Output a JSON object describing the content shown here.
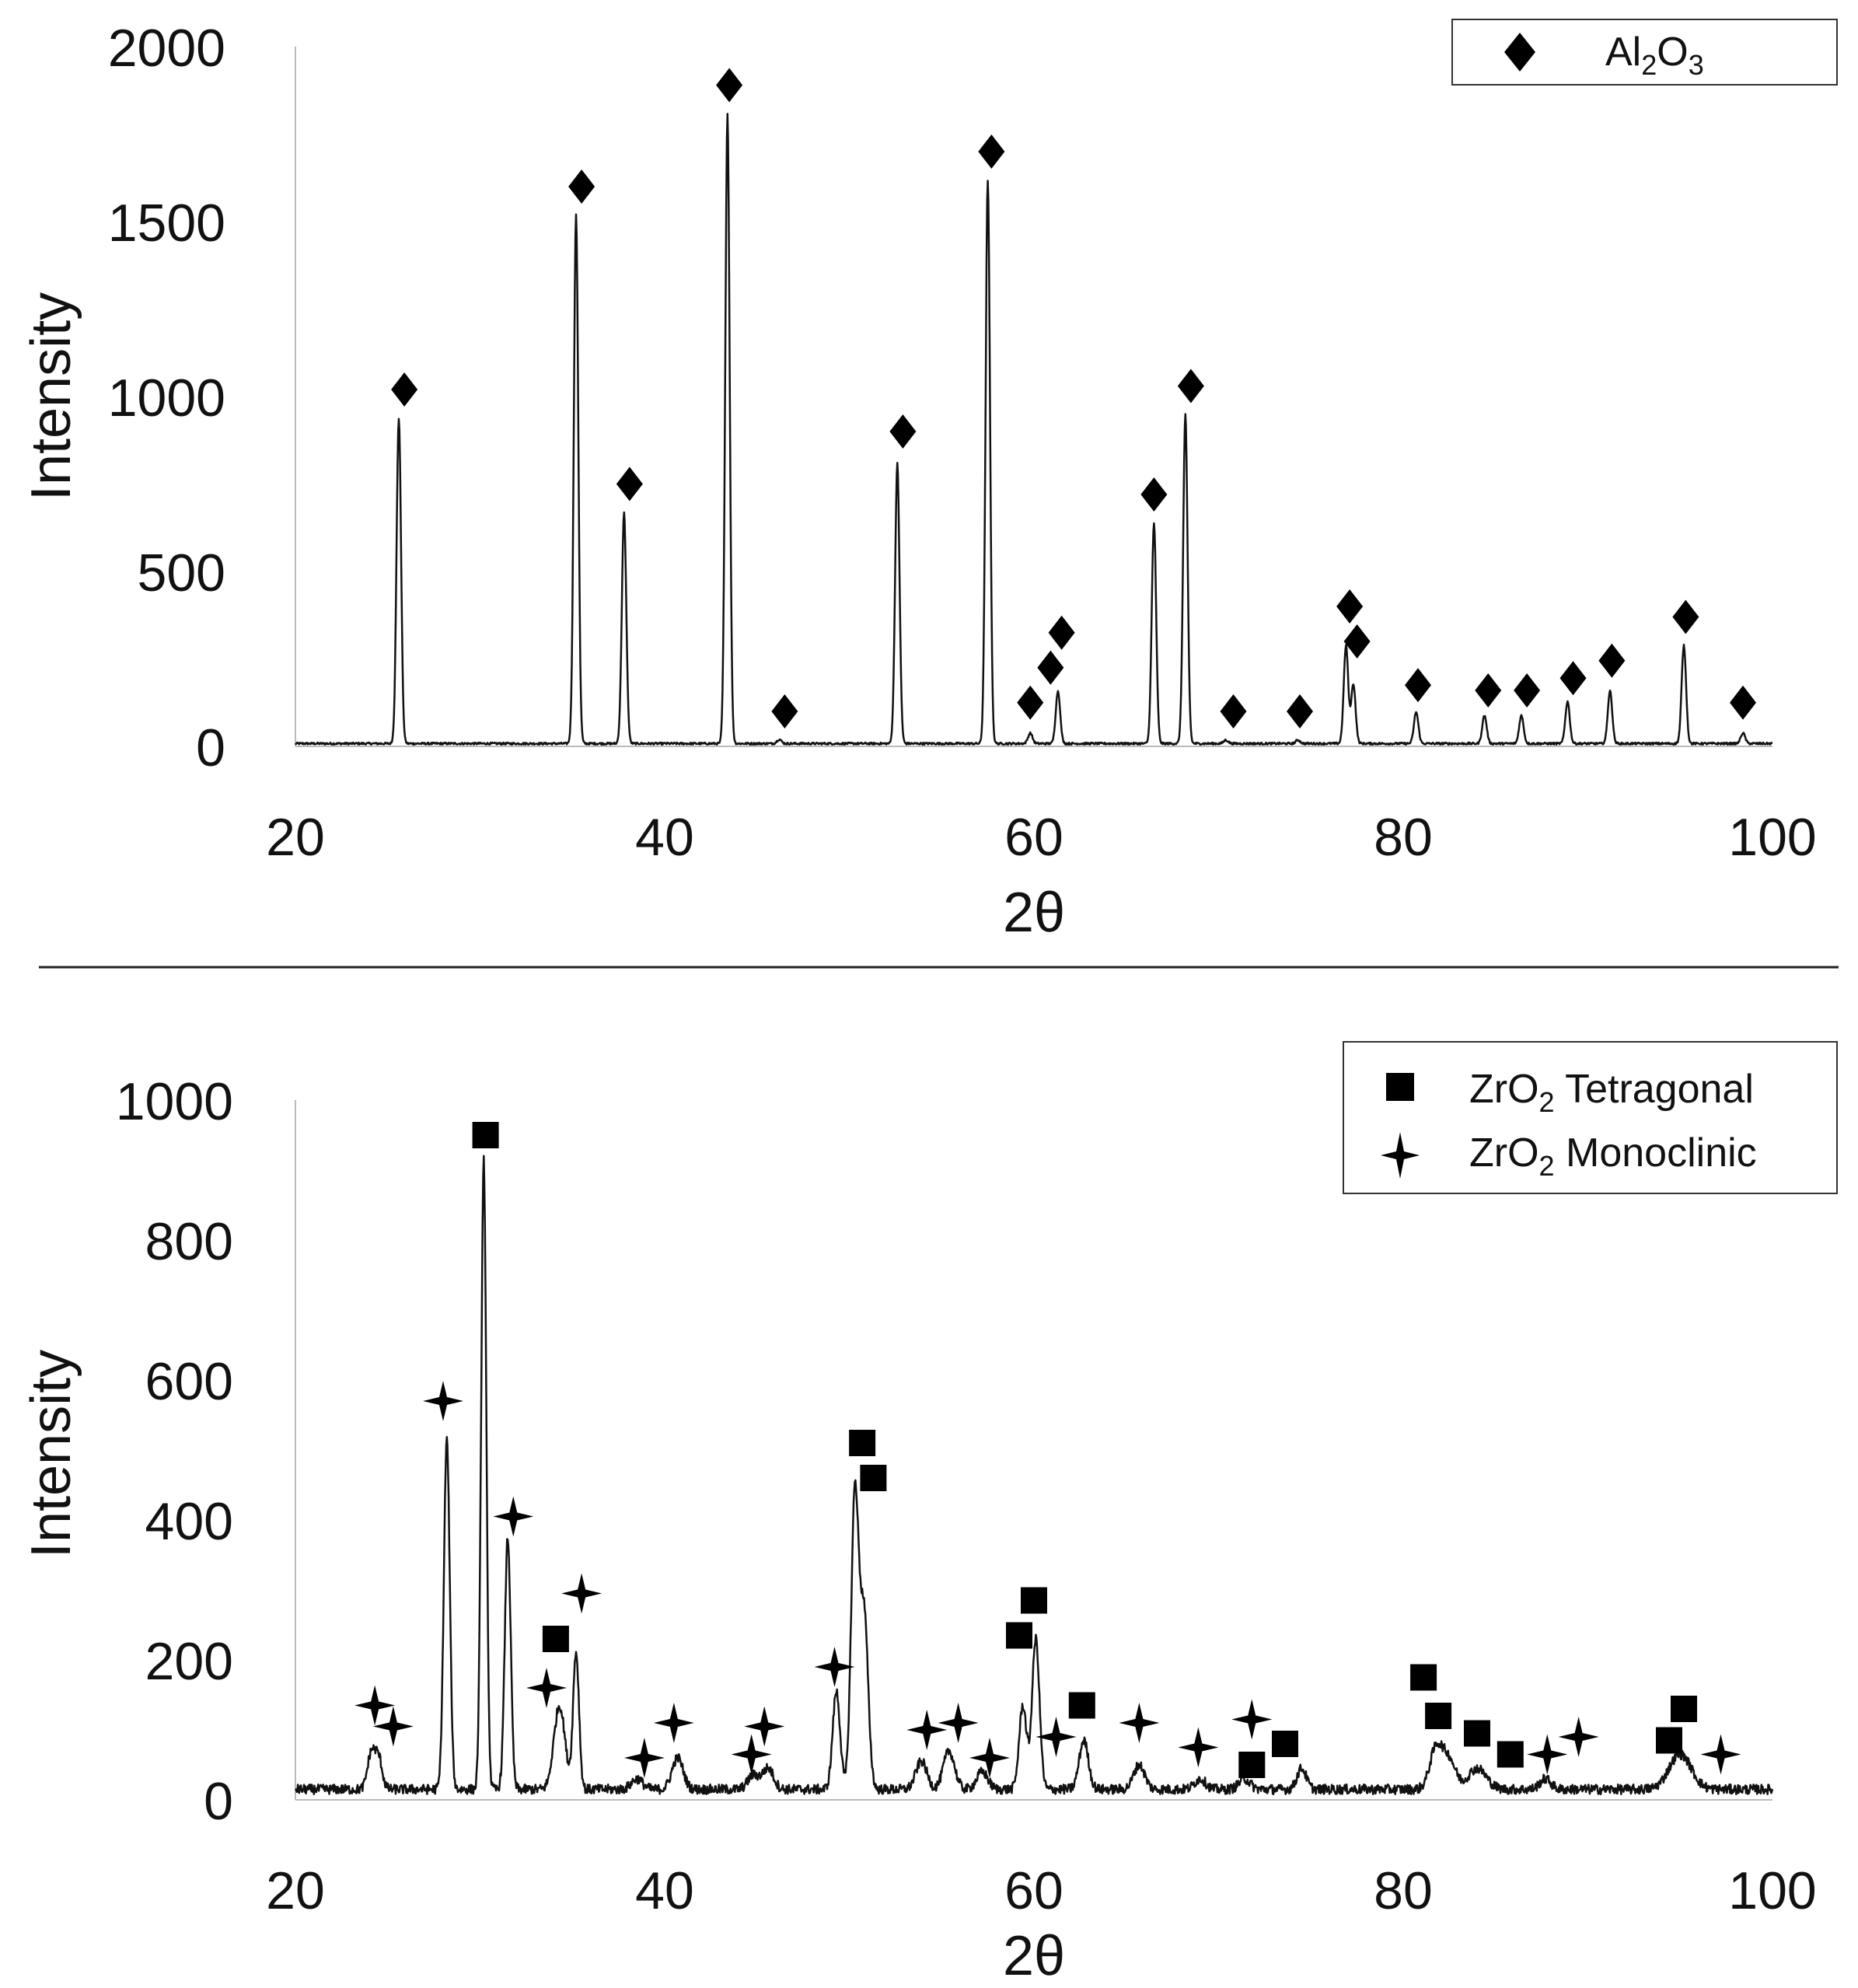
{
  "chart_data": [
    {
      "type": "line",
      "panel": "top",
      "title": "",
      "xlabel": "2θ",
      "ylabel": "Intensity",
      "xlim": [
        20,
        100
      ],
      "ylim": [
        0,
        2000
      ],
      "xticks": [
        "20",
        "40",
        "60",
        "80",
        "100"
      ],
      "yticks": [
        "0",
        "500",
        "1000",
        "1500",
        "2000"
      ],
      "grid": false,
      "legend_position": "top-right",
      "legend": [
        {
          "marker": "diamond",
          "label": "Al",
          "sub1": "2",
          "mid": "O",
          "sub2": "3"
        }
      ],
      "baseline": 5,
      "peaks": [
        {
          "x": 25.6,
          "y": 930,
          "w": 0.12
        },
        {
          "x": 35.2,
          "y": 1510,
          "w": 0.12
        },
        {
          "x": 37.8,
          "y": 660,
          "w": 0.12
        },
        {
          "x": 43.4,
          "y": 1800,
          "w": 0.12
        },
        {
          "x": 46.2,
          "y": 12,
          "w": 0.12
        },
        {
          "x": 52.6,
          "y": 800,
          "w": 0.12
        },
        {
          "x": 57.5,
          "y": 1610,
          "w": 0.12
        },
        {
          "x": 59.8,
          "y": 30,
          "w": 0.12
        },
        {
          "x": 61.3,
          "y": 150,
          "w": 0.12
        },
        {
          "x": 66.5,
          "y": 630,
          "w": 0.12
        },
        {
          "x": 68.2,
          "y": 940,
          "w": 0.12
        },
        {
          "x": 70.4,
          "y": 10,
          "w": 0.12
        },
        {
          "x": 74.3,
          "y": 10,
          "w": 0.12
        },
        {
          "x": 76.9,
          "y": 280,
          "w": 0.12
        },
        {
          "x": 77.3,
          "y": 170,
          "w": 0.12
        },
        {
          "x": 80.7,
          "y": 90,
          "w": 0.12
        },
        {
          "x": 84.4,
          "y": 80,
          "w": 0.12
        },
        {
          "x": 86.4,
          "y": 80,
          "w": 0.12
        },
        {
          "x": 88.9,
          "y": 120,
          "w": 0.12
        },
        {
          "x": 91.2,
          "y": 150,
          "w": 0.12
        },
        {
          "x": 95.2,
          "y": 280,
          "w": 0.12
        },
        {
          "x": 98.4,
          "y": 30,
          "w": 0.12
        }
      ],
      "markers": [
        {
          "shape": "diamond",
          "x": 25.9,
          "y": 1020
        },
        {
          "shape": "diamond",
          "x": 35.5,
          "y": 1600
        },
        {
          "shape": "diamond",
          "x": 38.1,
          "y": 750
        },
        {
          "shape": "diamond",
          "x": 43.5,
          "y": 1890
        },
        {
          "shape": "diamond",
          "x": 46.5,
          "y": 100
        },
        {
          "shape": "diamond",
          "x": 52.9,
          "y": 900
        },
        {
          "shape": "diamond",
          "x": 57.7,
          "y": 1700
        },
        {
          "shape": "diamond",
          "x": 59.8,
          "y": 125
        },
        {
          "shape": "diamond",
          "x": 60.9,
          "y": 225
        },
        {
          "shape": "diamond",
          "x": 61.5,
          "y": 325
        },
        {
          "shape": "diamond",
          "x": 66.5,
          "y": 720
        },
        {
          "shape": "diamond",
          "x": 68.5,
          "y": 1030
        },
        {
          "shape": "diamond",
          "x": 70.8,
          "y": 100
        },
        {
          "shape": "diamond",
          "x": 74.4,
          "y": 100
        },
        {
          "shape": "diamond",
          "x": 77.1,
          "y": 400
        },
        {
          "shape": "diamond",
          "x": 77.5,
          "y": 300
        },
        {
          "shape": "diamond",
          "x": 80.8,
          "y": 175
        },
        {
          "shape": "diamond",
          "x": 84.6,
          "y": 160
        },
        {
          "shape": "diamond",
          "x": 86.7,
          "y": 160
        },
        {
          "shape": "diamond",
          "x": 89.2,
          "y": 195
        },
        {
          "shape": "diamond",
          "x": 91.3,
          "y": 245
        },
        {
          "shape": "diamond",
          "x": 95.3,
          "y": 370
        },
        {
          "shape": "diamond",
          "x": 98.4,
          "y": 125
        }
      ]
    },
    {
      "type": "line",
      "panel": "bottom",
      "title": "",
      "xlabel": "2θ",
      "ylabel": "Intensity",
      "xlim": [
        20,
        100
      ],
      "ylim": [
        0,
        1000
      ],
      "xticks": [
        "20",
        "40",
        "60",
        "80",
        "100"
      ],
      "yticks": [
        "0",
        "200",
        "400",
        "600",
        "800",
        "1000"
      ],
      "grid": false,
      "legend_position": "top-right",
      "legend": [
        {
          "marker": "square",
          "label": "ZrO",
          "sub1": "2",
          "mid": " Tetragonal",
          "sub2": ""
        },
        {
          "marker": "star",
          "label": "ZrO",
          "sub1": "2",
          "mid": " Monoclinic",
          "sub2": ""
        }
      ],
      "baseline": 8,
      "peaks": [
        {
          "x": 24.1,
          "y": 50,
          "w": 0.2
        },
        {
          "x": 24.5,
          "y": 45,
          "w": 0.2
        },
        {
          "x": 28.2,
          "y": 500,
          "w": 0.16
        },
        {
          "x": 30.2,
          "y": 900,
          "w": 0.14
        },
        {
          "x": 31.5,
          "y": 360,
          "w": 0.16
        },
        {
          "x": 34.3,
          "y": 120,
          "w": 0.3
        },
        {
          "x": 35.2,
          "y": 195,
          "w": 0.16
        },
        {
          "x": 38.5,
          "y": 15,
          "w": 0.3
        },
        {
          "x": 40.7,
          "y": 45,
          "w": 0.3
        },
        {
          "x": 44.8,
          "y": 20,
          "w": 0.3
        },
        {
          "x": 45.6,
          "y": 30,
          "w": 0.3
        },
        {
          "x": 49.3,
          "y": 140,
          "w": 0.2
        },
        {
          "x": 50.3,
          "y": 420,
          "w": 0.2
        },
        {
          "x": 50.8,
          "y": 250,
          "w": 0.22
        },
        {
          "x": 53.9,
          "y": 40,
          "w": 0.3
        },
        {
          "x": 55.4,
          "y": 55,
          "w": 0.3
        },
        {
          "x": 57.2,
          "y": 25,
          "w": 0.3
        },
        {
          "x": 59.4,
          "y": 120,
          "w": 0.2
        },
        {
          "x": 60.1,
          "y": 215,
          "w": 0.2
        },
        {
          "x": 62.7,
          "y": 70,
          "w": 0.25
        },
        {
          "x": 65.7,
          "y": 35,
          "w": 0.3
        },
        {
          "x": 69.0,
          "y": 15,
          "w": 0.3
        },
        {
          "x": 71.4,
          "y": 15,
          "w": 0.3
        },
        {
          "x": 74.5,
          "y": 30,
          "w": 0.25
        },
        {
          "x": 81.8,
          "y": 60,
          "w": 0.35
        },
        {
          "x": 82.5,
          "y": 40,
          "w": 0.35
        },
        {
          "x": 84.0,
          "y": 30,
          "w": 0.5
        },
        {
          "x": 87.7,
          "y": 15,
          "w": 0.3
        },
        {
          "x": 95.0,
          "y": 50,
          "w": 0.6
        }
      ],
      "markers": [
        {
          "shape": "star",
          "x": 24.3,
          "y": 135
        },
        {
          "shape": "star",
          "x": 25.3,
          "y": 105
        },
        {
          "shape": "star",
          "x": 28.0,
          "y": 570
        },
        {
          "shape": "square",
          "x": 30.3,
          "y": 950
        },
        {
          "shape": "star",
          "x": 31.8,
          "y": 405
        },
        {
          "shape": "star",
          "x": 33.6,
          "y": 160
        },
        {
          "shape": "square",
          "x": 34.1,
          "y": 230
        },
        {
          "shape": "star",
          "x": 35.5,
          "y": 295
        },
        {
          "shape": "star",
          "x": 38.9,
          "y": 60
        },
        {
          "shape": "star",
          "x": 40.5,
          "y": 110
        },
        {
          "shape": "star",
          "x": 44.7,
          "y": 65
        },
        {
          "shape": "star",
          "x": 45.4,
          "y": 105
        },
        {
          "shape": "star",
          "x": 49.2,
          "y": 190
        },
        {
          "shape": "square",
          "x": 50.7,
          "y": 510
        },
        {
          "shape": "square",
          "x": 51.3,
          "y": 460
        },
        {
          "shape": "star",
          "x": 54.2,
          "y": 100
        },
        {
          "shape": "star",
          "x": 55.9,
          "y": 110
        },
        {
          "shape": "star",
          "x": 57.6,
          "y": 60
        },
        {
          "shape": "square",
          "x": 59.2,
          "y": 235
        },
        {
          "shape": "square",
          "x": 60.0,
          "y": 285
        },
        {
          "shape": "star",
          "x": 61.2,
          "y": 90
        },
        {
          "shape": "square",
          "x": 62.6,
          "y": 135
        },
        {
          "shape": "star",
          "x": 65.7,
          "y": 110
        },
        {
          "shape": "star",
          "x": 68.9,
          "y": 75
        },
        {
          "shape": "square",
          "x": 71.8,
          "y": 50
        },
        {
          "shape": "star",
          "x": 71.8,
          "y": 115
        },
        {
          "shape": "square",
          "x": 73.6,
          "y": 80
        },
        {
          "shape": "square",
          "x": 81.1,
          "y": 175
        },
        {
          "shape": "square",
          "x": 81.9,
          "y": 120
        },
        {
          "shape": "square",
          "x": 84.0,
          "y": 95
        },
        {
          "shape": "square",
          "x": 85.8,
          "y": 65
        },
        {
          "shape": "star",
          "x": 87.8,
          "y": 65
        },
        {
          "shape": "star",
          "x": 89.5,
          "y": 90
        },
        {
          "shape": "square",
          "x": 94.4,
          "y": 85
        },
        {
          "shape": "square",
          "x": 95.2,
          "y": 130
        },
        {
          "shape": "star",
          "x": 97.2,
          "y": 65
        }
      ]
    }
  ]
}
